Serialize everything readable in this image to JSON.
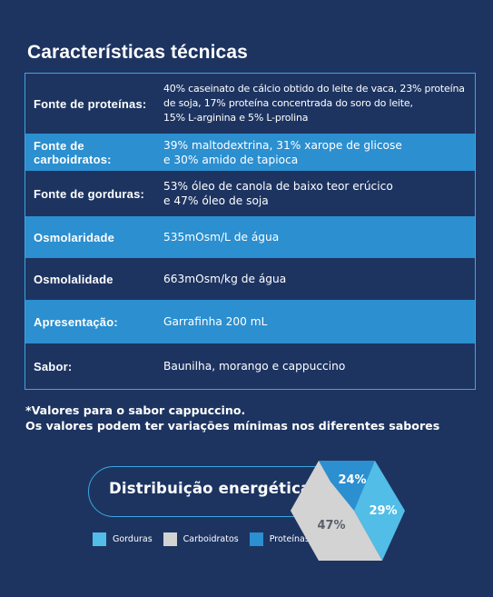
{
  "title": "Características técnicas",
  "specs": [
    {
      "label": "Fonte de proteínas:",
      "lines": [
        "40% caseinato de cálcio obtido do leite de vaca, 23% proteína",
        "de soja, 17% proteína concentrada do soro do leite,",
        "15% L-arginina e 5% L-prolina"
      ]
    },
    {
      "label": "Fonte de carboidratos:",
      "lines": [
        "39% maltodextrina, 31% xarope de glicose",
        "e 30% amido de tapioca"
      ]
    },
    {
      "label": "Fonte de gorduras:",
      "lines": [
        "53% óleo de canola de baixo teor erúcico",
        "e 47% óleo de soja"
      ]
    },
    {
      "label": "Osmolaridade",
      "lines": [
        "535mOsm/L de água"
      ]
    },
    {
      "label": "Osmolalidade",
      "lines": [
        "663mOsm/kg de água"
      ]
    },
    {
      "label": "Apresentação:",
      "lines": [
        "Garrafinha 200 mL"
      ]
    },
    {
      "label": "Sabor:",
      "lines": [
        "Baunilha, morango e cappuccino"
      ]
    }
  ],
  "notes": {
    "line1": "*Valores para o sabor cappuccino.",
    "line2": "Os valores podem ter variações mínimas nos diferentes sabores"
  },
  "energy": {
    "title": "Distribuição energética",
    "legend": [
      {
        "name": "Gorduras",
        "color": "#52bde6"
      },
      {
        "name": "Carboidratos",
        "color": "#d3d3d3"
      },
      {
        "name": "Proteínas",
        "color": "#2b8fd0"
      }
    ],
    "segments": [
      {
        "name": "Proteínas",
        "value": 24,
        "label": "24%",
        "color": "#2b8fd0"
      },
      {
        "name": "Gorduras",
        "value": 29,
        "label": "29%",
        "color": "#52bde6"
      },
      {
        "name": "Carboidratos",
        "value": 47,
        "label": "47%",
        "color": "#d3d3d3"
      }
    ]
  },
  "colors": {
    "background": "#1d3461",
    "accent": "#2b8fd0",
    "border": "#3ea6de"
  }
}
